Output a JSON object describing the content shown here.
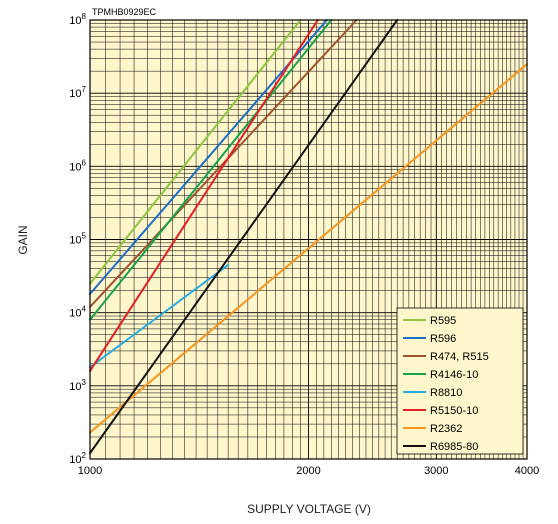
{
  "chart_data": {
    "type": "line",
    "code": "TPMHB0929EC",
    "xlabel": "SUPPLY VOLTAGE (V)",
    "ylabel": "GAIN",
    "xscale": "log",
    "yscale": "log",
    "xlim": [
      1000,
      4000
    ],
    "ylim": [
      100,
      100000000
    ],
    "grid": true,
    "legend_position": "bottom-right",
    "x_ticks": [
      "1000",
      "2000",
      "3000",
      "4000"
    ],
    "x_tick_values": [
      1000,
      2000,
      3000,
      4000
    ],
    "y_ticks": [
      {
        "base": "10",
        "exp": "2",
        "value": 100
      },
      {
        "base": "10",
        "exp": "3",
        "value": 1000
      },
      {
        "base": "10",
        "exp": "4",
        "value": 10000
      },
      {
        "base": "10",
        "exp": "5",
        "value": 100000
      },
      {
        "base": "10",
        "exp": "6",
        "value": 1000000
      },
      {
        "base": "10",
        "exp": "7",
        "value": 10000000
      },
      {
        "base": "10",
        "exp": "8",
        "value": 100000000
      }
    ],
    "series": [
      {
        "name": "R595",
        "color": "#8cc63f",
        "x": [
          1000,
          1950
        ],
        "y": [
          25000,
          100000000
        ]
      },
      {
        "name": "R596",
        "color": "#1f6fc6",
        "x": [
          1000,
          2120
        ],
        "y": [
          18000,
          100000000
        ]
      },
      {
        "name": "R474, R515",
        "color": "#a0522d",
        "x": [
          1000,
          2330
        ],
        "y": [
          12000,
          100000000
        ]
      },
      {
        "name": "R4146-10",
        "color": "#16a34a",
        "x": [
          1000,
          2150
        ],
        "y": [
          8000,
          100000000
        ]
      },
      {
        "name": "R8810",
        "color": "#29aae1",
        "x": [
          1000,
          1550
        ],
        "y": [
          1800,
          45000
        ]
      },
      {
        "name": "R5150-10",
        "color": "#e31e24",
        "x": [
          1000,
          2060
        ],
        "y": [
          1600,
          100000000
        ]
      },
      {
        "name": "R2362",
        "color": "#f7941d",
        "x": [
          1000,
          4000
        ],
        "y": [
          230,
          25000000
        ]
      },
      {
        "name": "R6985-80",
        "color": "#111111",
        "x": [
          1000,
          2650
        ],
        "y": [
          120,
          100000000
        ]
      }
    ]
  }
}
